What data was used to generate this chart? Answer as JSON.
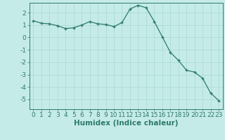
{
  "x": [
    0,
    1,
    2,
    3,
    4,
    5,
    6,
    7,
    8,
    9,
    10,
    11,
    12,
    13,
    14,
    15,
    16,
    17,
    18,
    19,
    20,
    21,
    22,
    23
  ],
  "y": [
    1.35,
    1.15,
    1.1,
    0.95,
    0.72,
    0.78,
    1.0,
    1.28,
    1.1,
    1.05,
    0.88,
    1.2,
    2.3,
    2.6,
    2.4,
    1.3,
    0.05,
    -1.2,
    -1.85,
    -2.65,
    -2.8,
    -3.3,
    -4.5,
    -5.1
  ],
  "line_color": "#2d7a6a",
  "bg_color": "#c5ebe8",
  "grid_major_color": "#a8d8d4",
  "grid_minor_color": "#b8e2de",
  "axis_color": "#2d7a6a",
  "xlabel": "Humidex (Indice chaleur)",
  "xlim": [
    -0.5,
    23.5
  ],
  "ylim": [
    -5.8,
    2.8
  ],
  "yticks": [
    -5,
    -4,
    -3,
    -2,
    -1,
    0,
    1,
    2
  ],
  "xticks": [
    0,
    1,
    2,
    3,
    4,
    5,
    6,
    7,
    8,
    9,
    10,
    11,
    12,
    13,
    14,
    15,
    16,
    17,
    18,
    19,
    20,
    21,
    22,
    23
  ],
  "font_size": 6.5,
  "label_font_size": 7.5
}
